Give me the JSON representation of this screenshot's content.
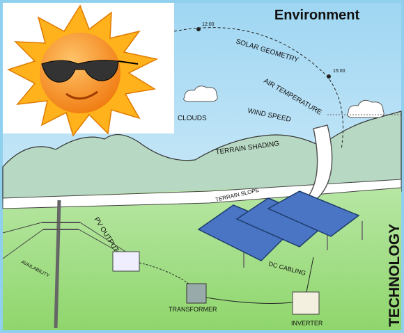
{
  "header": {
    "title": "Environment",
    "side_title": "TECHNOLOGY"
  },
  "sun_path": {
    "times": [
      "12:00",
      "15:00"
    ]
  },
  "environment_factors": [
    "SOLAR GEOMETRY",
    "AIR TEMPERATURE",
    "WIND SPEED",
    "CLOUDS",
    "TERRAIN SHADING",
    "TERRAIN SLOPE"
  ],
  "technology_factors": [
    "PV OUTPUT",
    "AVAILABILITY",
    "DC CABLING",
    "TRANSFORMER",
    "INVERTER"
  ]
}
